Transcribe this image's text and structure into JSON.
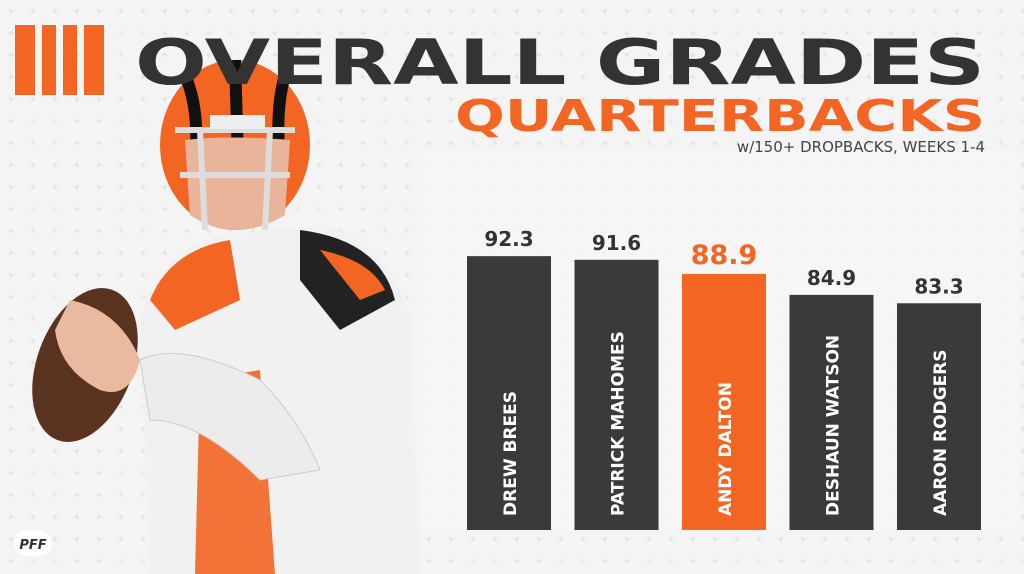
{
  "chart_data": {
    "type": "bar",
    "title": "OVERALL GRADES",
    "subtitle": "QUARTERBACKS",
    "note": "w/150+ DROPBACKS, WEEKS 1-4",
    "categories": [
      "DREW BREES",
      "PATRICK MAHOMES",
      "ANDY DALTON",
      "DESHAUN WATSON",
      "AARON RODGERS"
    ],
    "values": [
      92.3,
      91.6,
      88.9,
      84.9,
      83.3
    ],
    "colors": [
      "#3b3a3a",
      "#3b3a3a",
      "#f26522",
      "#3b3a3a",
      "#3b3a3a"
    ],
    "ylim": [
      40,
      95
    ]
  },
  "logo": "PFF"
}
